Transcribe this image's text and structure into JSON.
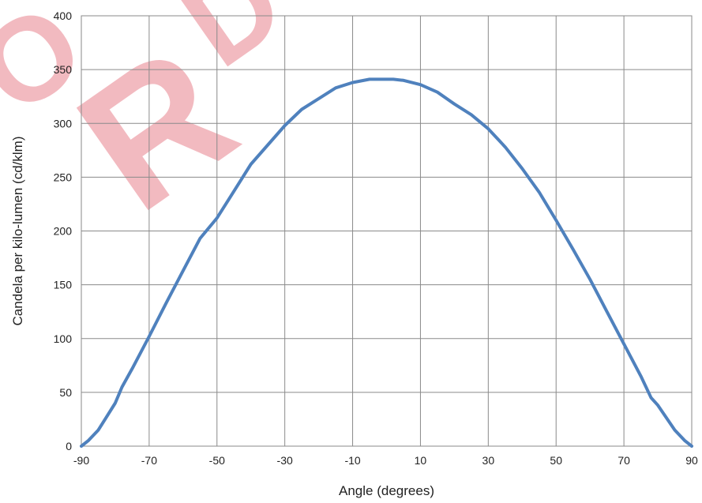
{
  "watermark": "ORD",
  "chart_data": {
    "type": "line",
    "title": "",
    "xlabel": "Angle (degrees)",
    "ylabel": "Candela per kilo-lumen (cd/klm)",
    "xlim": [
      -90,
      90
    ],
    "ylim": [
      0,
      400
    ],
    "xticks": [
      -90,
      -70,
      -50,
      -30,
      -10,
      10,
      30,
      50,
      70,
      90
    ],
    "yticks": [
      0,
      50,
      100,
      150,
      200,
      250,
      300,
      350,
      400
    ],
    "grid": true,
    "legend": "none",
    "color": "#4f81bd",
    "series": [
      {
        "x": [
          -90,
          -88,
          -85,
          -80,
          -78,
          -75,
          -70,
          -65,
          -60,
          -55,
          -50,
          -45,
          -40,
          -35,
          -30,
          -25,
          -20,
          -15,
          -10,
          -5,
          -2,
          0,
          2,
          5,
          10,
          15,
          20,
          25,
          30,
          35,
          40,
          45,
          50,
          55,
          60,
          65,
          70,
          75,
          78,
          80,
          85,
          88,
          90
        ],
        "y": [
          0,
          5,
          15,
          40,
          55,
          72,
          102,
          133,
          163,
          193,
          212,
          237,
          262,
          280,
          298,
          313,
          323,
          333,
          338,
          341,
          341,
          341,
          341,
          340,
          336,
          329,
          318,
          308,
          295,
          278,
          258,
          236,
          210,
          183,
          155,
          125,
          95,
          65,
          45,
          38,
          15,
          5,
          0
        ]
      }
    ]
  }
}
